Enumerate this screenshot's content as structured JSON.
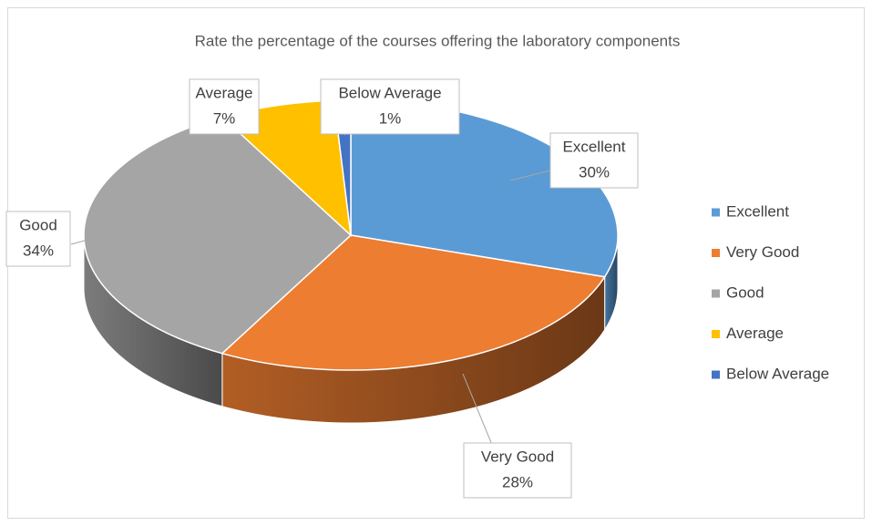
{
  "chart_data": {
    "type": "pie3d",
    "title": "Rate the percentage of the courses offering the laboratory components",
    "categories": [
      "Excellent",
      "Very Good",
      "Good",
      "Average",
      "Below Average"
    ],
    "values": [
      30,
      28,
      34,
      7,
      1
    ],
    "value_labels": [
      "30%",
      "28%",
      "34%",
      "7%",
      "1%"
    ],
    "colors": [
      "#5b9bd5",
      "#ed7d31",
      "#a5a5a5",
      "#ffc000",
      "#4472c4"
    ],
    "legend": "right"
  }
}
